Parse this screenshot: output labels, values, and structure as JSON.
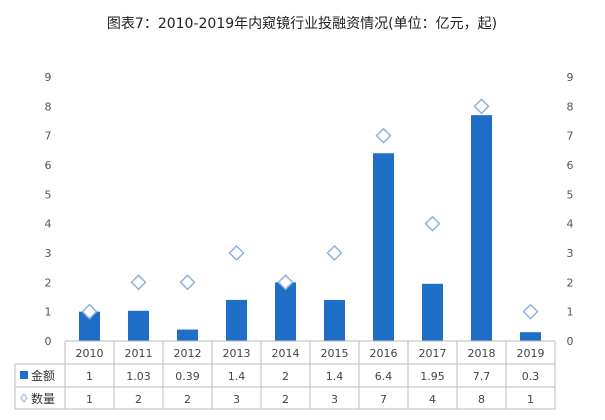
{
  "chart_data": {
    "type": "bar",
    "title": "图表7：2010-2019年内窥镜行业投融资情况(单位：亿元，起)",
    "categories": [
      "2010",
      "2011",
      "2012",
      "2013",
      "2014",
      "2015",
      "2016",
      "2017",
      "2018",
      "2019"
    ],
    "series": [
      {
        "name": "金额",
        "type": "bar",
        "axis": "left",
        "color": "#1f6fc8",
        "values": [
          1,
          1.03,
          0.39,
          1.4,
          2,
          1.4,
          6.4,
          1.95,
          7.7,
          0.3
        ]
      },
      {
        "name": "数量",
        "type": "scatter",
        "marker": "diamond",
        "axis": "right",
        "color": "#8fb3dc",
        "values": [
          1,
          2,
          2,
          3,
          2,
          3,
          7,
          4,
          8,
          1
        ]
      }
    ],
    "ylim": [
      0,
      9
    ],
    "y2lim": [
      0,
      9
    ],
    "yticks": [
      "0",
      "1",
      "2",
      "3",
      "4",
      "5",
      "6",
      "7",
      "8",
      "9"
    ],
    "grid": false,
    "data_table": true,
    "table_values": {
      "金额": [
        "1",
        "1.03",
        "0.39",
        "1.4",
        "2",
        "1.4",
        "6.4",
        "1.95",
        "7.7",
        "0.3"
      ],
      "数量": [
        "1",
        "2",
        "2",
        "3",
        "2",
        "3",
        "7",
        "4",
        "8",
        "1"
      ]
    }
  }
}
